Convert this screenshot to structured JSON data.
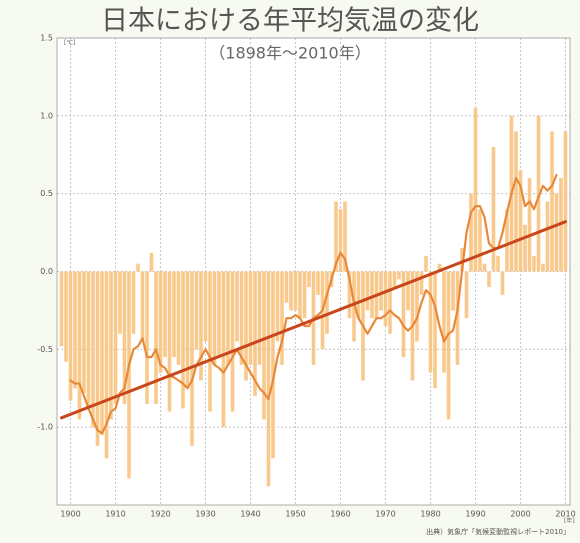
{
  "chart_data": {
    "type": "bar",
    "title": "日本における年平均気温の変化",
    "subtitle": "（1898年～2010年）",
    "y_unit": "[℃]",
    "x_unit": "[年]",
    "source": "出典）気象庁「気候変動監視レポート2010」",
    "x": [
      1898,
      1899,
      1900,
      1901,
      1902,
      1903,
      1904,
      1905,
      1906,
      1907,
      1908,
      1909,
      1910,
      1911,
      1912,
      1913,
      1914,
      1915,
      1916,
      1917,
      1918,
      1919,
      1920,
      1921,
      1922,
      1923,
      1924,
      1925,
      1926,
      1927,
      1928,
      1929,
      1930,
      1931,
      1932,
      1933,
      1934,
      1935,
      1936,
      1937,
      1938,
      1939,
      1940,
      1941,
      1942,
      1943,
      1944,
      1945,
      1946,
      1947,
      1948,
      1949,
      1950,
      1951,
      1952,
      1953,
      1954,
      1955,
      1956,
      1957,
      1958,
      1959,
      1960,
      1961,
      1962,
      1963,
      1964,
      1965,
      1966,
      1967,
      1968,
      1969,
      1970,
      1971,
      1972,
      1973,
      1974,
      1975,
      1976,
      1977,
      1978,
      1979,
      1980,
      1981,
      1982,
      1983,
      1984,
      1985,
      1986,
      1987,
      1988,
      1989,
      1990,
      1991,
      1992,
      1993,
      1994,
      1995,
      1996,
      1997,
      1998,
      1999,
      2000,
      2001,
      2002,
      2003,
      2004,
      2005,
      2006,
      2007,
      2008,
      2009,
      2010
    ],
    "series": [
      {
        "type": "bar",
        "color": "#f9c98c",
        "values": [
          -0.48,
          -0.58,
          -0.83,
          -0.75,
          -0.95,
          -0.78,
          -0.88,
          -1.0,
          -1.12,
          -1.05,
          -1.2,
          -0.95,
          -0.85,
          -0.4,
          -0.85,
          -1.33,
          -0.4,
          0.05,
          -0.45,
          -0.85,
          0.12,
          -0.85,
          -0.65,
          -0.55,
          -0.9,
          -0.55,
          -0.6,
          -0.88,
          -0.75,
          -1.12,
          -0.5,
          -0.7,
          -0.45,
          -0.9,
          -0.6,
          -0.55,
          -1.0,
          -0.6,
          -0.9,
          -0.45,
          -0.6,
          -0.7,
          -0.6,
          -0.8,
          -0.6,
          -0.95,
          -1.38,
          -1.2,
          -0.45,
          -0.6,
          -0.2,
          -0.25,
          -0.25,
          -0.3,
          -0.3,
          -0.1,
          -0.6,
          -0.15,
          -0.5,
          -0.4,
          -0.1,
          0.45,
          0.4,
          0.45,
          -0.3,
          -0.45,
          -0.3,
          -0.7,
          -0.25,
          -0.3,
          -0.3,
          -0.25,
          -0.35,
          -0.4,
          -0.1,
          -0.05,
          -0.55,
          -0.25,
          -0.7,
          -0.45,
          -0.15,
          0.1,
          -0.65,
          -0.75,
          0.05,
          -0.65,
          -0.95,
          -0.25,
          -0.6,
          0.15,
          -0.3,
          0.5,
          1.05,
          0.4,
          0.05,
          -0.1,
          0.8,
          0.1,
          -0.15,
          0.4,
          1.0,
          0.9,
          0.65,
          0.3,
          0.6,
          0.1,
          1.0,
          0.05,
          0.45,
          0.9,
          0.5,
          0.6,
          0.9
        ]
      },
      {
        "type": "line",
        "color": "#e8893a",
        "values": [
          null,
          null,
          -0.7,
          -0.72,
          -0.72,
          -0.8,
          -0.88,
          -0.95,
          -1.02,
          -1.04,
          -0.98,
          -0.9,
          -0.88,
          -0.78,
          -0.75,
          -0.6,
          -0.5,
          -0.48,
          -0.43,
          -0.55,
          -0.55,
          -0.5,
          -0.6,
          -0.62,
          -0.67,
          -0.68,
          -0.7,
          -0.72,
          -0.75,
          -0.7,
          -0.6,
          -0.55,
          -0.5,
          -0.55,
          -0.6,
          -0.62,
          -0.65,
          -0.6,
          -0.55,
          -0.5,
          -0.55,
          -0.6,
          -0.65,
          -0.7,
          -0.75,
          -0.78,
          -0.82,
          -0.7,
          -0.55,
          -0.45,
          -0.3,
          -0.3,
          -0.28,
          -0.3,
          -0.35,
          -0.35,
          -0.3,
          -0.28,
          -0.25,
          -0.15,
          -0.05,
          0.05,
          0.12,
          0.08,
          -0.05,
          -0.2,
          -0.3,
          -0.35,
          -0.4,
          -0.35,
          -0.3,
          -0.3,
          -0.28,
          -0.25,
          -0.28,
          -0.3,
          -0.35,
          -0.38,
          -0.35,
          -0.3,
          -0.2,
          -0.12,
          -0.15,
          -0.22,
          -0.35,
          -0.45,
          -0.4,
          -0.38,
          -0.25,
          0.0,
          0.25,
          0.38,
          0.42,
          0.42,
          0.35,
          0.18,
          0.15,
          0.15,
          0.25,
          0.38,
          0.5,
          0.6,
          0.55,
          0.42,
          0.45,
          0.4,
          0.48,
          0.55,
          0.52,
          0.55,
          0.62,
          null,
          null
        ]
      },
      {
        "type": "line",
        "color": "#c8461b",
        "x": [
          1898,
          2010
        ],
        "values": [
          -0.94,
          0.32
        ]
      }
    ],
    "xlim": [
      1897,
      2011
    ],
    "xticks": [
      1900,
      1910,
      1920,
      1930,
      1940,
      1950,
      1960,
      1970,
      1980,
      1990,
      2000,
      2010
    ],
    "ylim": [
      -1.5,
      1.5
    ],
    "yticks": [
      {
        "value": -1,
        "label": "-1.0"
      },
      -0.5,
      {
        "value": 0,
        "label": "0.0"
      },
      0.5,
      {
        "value": 1,
        "label": "1.0"
      },
      1.5
    ],
    "grid": true
  }
}
